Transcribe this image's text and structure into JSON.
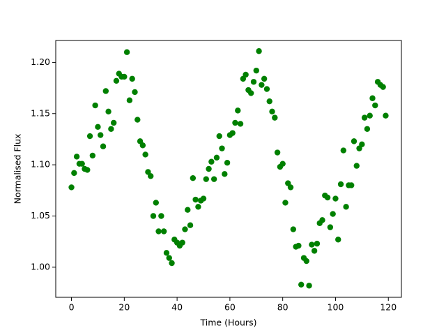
{
  "chart_data": {
    "type": "scatter",
    "xlabel": "Time (Hours)",
    "ylabel": "Normalised Flux",
    "color": "#008000",
    "x": [
      0,
      1,
      2,
      3,
      4,
      5,
      6,
      7,
      8,
      9,
      10,
      11,
      12,
      13,
      14,
      15,
      16,
      17,
      18,
      19,
      20,
      21,
      22,
      23,
      24,
      25,
      26,
      27,
      28,
      29,
      30,
      31,
      32,
      33,
      34,
      35,
      36,
      37,
      38,
      39,
      40,
      41,
      42,
      43,
      44,
      45,
      46,
      47,
      48,
      49,
      50,
      51,
      52,
      53,
      54,
      55,
      56,
      57,
      58,
      59,
      60,
      61,
      62,
      63,
      64,
      65,
      66,
      67,
      68,
      69,
      70,
      71,
      72,
      73,
      74,
      75,
      76,
      77,
      78,
      79,
      80,
      81,
      82,
      83,
      84,
      85,
      86,
      87,
      88,
      89,
      90,
      91,
      92,
      93,
      94,
      95,
      96,
      97,
      98,
      99,
      100,
      101,
      102,
      103,
      104,
      105,
      106,
      107,
      108,
      109,
      110,
      111,
      112,
      113,
      114,
      115,
      116,
      117,
      118,
      119
    ],
    "values": [
      1.078,
      1.092,
      1.108,
      1.101,
      1.101,
      1.096,
      1.095,
      1.128,
      1.109,
      1.158,
      1.137,
      1.129,
      1.118,
      1.172,
      1.152,
      1.135,
      1.141,
      1.182,
      1.189,
      1.186,
      1.186,
      1.21,
      1.163,
      1.184,
      1.171,
      1.144,
      1.123,
      1.119,
      1.11,
      1.093,
      1.089,
      1.05,
      1.063,
      1.035,
      1.05,
      1.035,
      1.014,
      1.009,
      1.004,
      1.027,
      1.024,
      1.021,
      1.024,
      1.037,
      1.056,
      1.041,
      1.087,
      1.066,
      1.059,
      1.065,
      1.067,
      1.086,
      1.096,
      1.103,
      1.086,
      1.107,
      1.128,
      1.116,
      1.091,
      1.102,
      1.129,
      1.131,
      1.141,
      1.153,
      1.14,
      1.184,
      1.188,
      1.173,
      1.17,
      1.181,
      1.192,
      1.211,
      1.178,
      1.184,
      1.174,
      1.162,
      1.152,
      1.146,
      1.112,
      1.098,
      1.101,
      1.063,
      1.082,
      1.078,
      1.037,
      1.02,
      1.021,
      0.983,
      1.009,
      1.006,
      0.982,
      1.022,
      1.016,
      1.023,
      1.043,
      1.046,
      1.07,
      1.068,
      1.039,
      1.052,
      1.067,
      1.027,
      1.081,
      1.114,
      1.059,
      1.08,
      1.08,
      1.123,
      1.099,
      1.116,
      1.12,
      1.146,
      1.135,
      1.148,
      1.165,
      1.158,
      1.181,
      1.178,
      1.176,
      1.148
    ],
    "xlim": [
      -5.95,
      124.95
    ],
    "xticks": [
      0,
      20,
      40,
      60,
      80,
      100,
      120
    ],
    "ylim": [
      0.9706,
      1.2214
    ],
    "yticks": [
      {
        "value": 1.0,
        "label": "1.00"
      },
      1.05,
      {
        "value": 1.1,
        "label": "1.10"
      },
      1.15,
      {
        "value": 1.2,
        "label": "1.20"
      }
    ],
    "grid": false
  }
}
